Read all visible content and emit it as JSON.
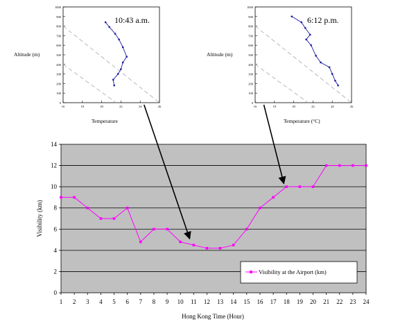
{
  "chart_data": [
    {
      "type": "line",
      "title": "10:43 a.m.",
      "xlabel": "Temperature",
      "ylabel": "Altitude (m)",
      "xlim": [
        16,
        26
      ],
      "ylim": [
        0,
        1000
      ],
      "xticks": [
        "16",
        "18",
        "20",
        "22",
        "24",
        "26"
      ],
      "yticks": [
        "0",
        "100",
        "200",
        "300",
        "400",
        "500",
        "600",
        "700",
        "800",
        "900",
        "1000"
      ],
      "grid": false,
      "series": [
        {
          "x": [
            21.3,
            21.2,
            21.7,
            22.0,
            22.2,
            22.6,
            22.2,
            21.8,
            21.4,
            20.8,
            20.4
          ],
          "y": [
            180,
            240,
            300,
            350,
            420,
            480,
            580,
            660,
            720,
            790,
            840
          ],
          "color": "#1a1aa0"
        }
      ],
      "reference_lines": [
        {
          "x": [
            16,
            21.5
          ],
          "y": [
            400,
            0
          ],
          "color": "#b0b0b0",
          "style": "dashed"
        },
        {
          "x": [
            16,
            26
          ],
          "y": [
            800,
            0
          ],
          "color": "#b0b0b0",
          "style": "dashed"
        }
      ]
    },
    {
      "type": "line",
      "title": "6:12 p.m.",
      "xlabel": "Temperature (°C)",
      "ylabel": "Altitude (m)",
      "xlim": [
        16,
        26
      ],
      "ylim": [
        0,
        1000
      ],
      "xticks": [
        "16",
        "18",
        "20",
        "22",
        "24",
        "26"
      ],
      "yticks": [
        "0",
        "100",
        "200",
        "300",
        "400",
        "500",
        "600",
        "700",
        "800",
        "900",
        "1000"
      ],
      "grid": false,
      "series": [
        {
          "x": [
            24.6,
            24.3,
            24.0,
            23.7,
            22.8,
            22.3,
            21.8,
            21.3,
            21.7,
            21.2,
            20.8,
            19.8
          ],
          "y": [
            180,
            230,
            300,
            370,
            420,
            490,
            600,
            660,
            710,
            780,
            840,
            900
          ],
          "color": "#1a1aa0"
        }
      ],
      "reference_lines": [
        {
          "x": [
            16,
            21.5
          ],
          "y": [
            400,
            0
          ],
          "color": "#b0b0b0",
          "style": "dashed"
        },
        {
          "x": [
            16,
            26
          ],
          "y": [
            800,
            0
          ],
          "color": "#b0b0b0",
          "style": "dashed"
        }
      ]
    },
    {
      "type": "line",
      "title": "",
      "xlabel": "Hong Kong Time (Hour)",
      "ylabel": "Visibility (km)",
      "xlim": [
        1,
        24
      ],
      "ylim": [
        0,
        14
      ],
      "categories": [
        "1",
        "2",
        "3",
        "4",
        "5",
        "6",
        "7",
        "8",
        "9",
        "10",
        "11",
        "12",
        "13",
        "14",
        "15",
        "16",
        "17",
        "18",
        "19",
        "20",
        "21",
        "22",
        "23",
        "24"
      ],
      "yticks": [
        "0",
        "2",
        "4",
        "6",
        "8",
        "10",
        "12",
        "14"
      ],
      "grid": true,
      "background": "#c0c0c0",
      "legend_position": "bottom-right",
      "series": [
        {
          "name": "Visibility at the Airport (km)",
          "color": "#ff00ff",
          "x": [
            1,
            2,
            3,
            4,
            5,
            6,
            7,
            8,
            9,
            10,
            11,
            12,
            13,
            14,
            15,
            16,
            17,
            18,
            19,
            20,
            21,
            22,
            23,
            24
          ],
          "values": [
            9,
            9,
            8,
            7,
            7,
            8,
            4.8,
            6,
            6,
            4.8,
            4.5,
            4.2,
            4.2,
            4.5,
            6,
            8,
            9,
            10,
            10,
            10,
            12,
            12,
            12,
            12
          ]
        }
      ]
    }
  ],
  "annotations": [
    {
      "from_chart": 0,
      "to_hour": 10.7,
      "to_value": 4.7,
      "color": "#000000"
    },
    {
      "from_chart": 1,
      "to_hour": 17.8,
      "to_value": 9.9,
      "color": "#000000"
    }
  ]
}
